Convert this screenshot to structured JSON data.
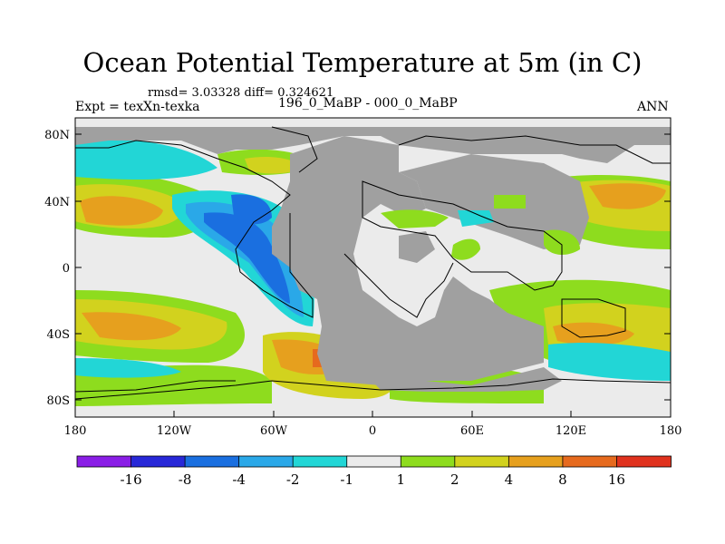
{
  "title": "Ocean Potential Temperature at 5m (in C)",
  "stats": "rmsd= 3.03328 diff= 0.324621",
  "experiment": "Expt = texXn-texka",
  "subtitle": "196_0_MaBP - 000_0_MaBP",
  "season": "ANN",
  "lat_labels": [
    "80N",
    "40N",
    "0",
    "40S",
    "80S"
  ],
  "lon_labels": [
    "180",
    "120W",
    "60W",
    "0",
    "60E",
    "120E",
    "180"
  ],
  "colorbar": {
    "colors": [
      "#8a1ee6",
      "#2828d8",
      "#1a6fe0",
      "#2aa8e8",
      "#22d6d6",
      "#ebebeb",
      "#8edc1e",
      "#d2d21e",
      "#e6a01e",
      "#e66a1e",
      "#e0321e"
    ],
    "labels": [
      "-16",
      "-8",
      "-4",
      "-2",
      "-1",
      "1",
      "2",
      "4",
      "8",
      "16"
    ]
  },
  "colors": {
    "land": "#a0a0a0",
    "neutral": "#ebebeb"
  }
}
